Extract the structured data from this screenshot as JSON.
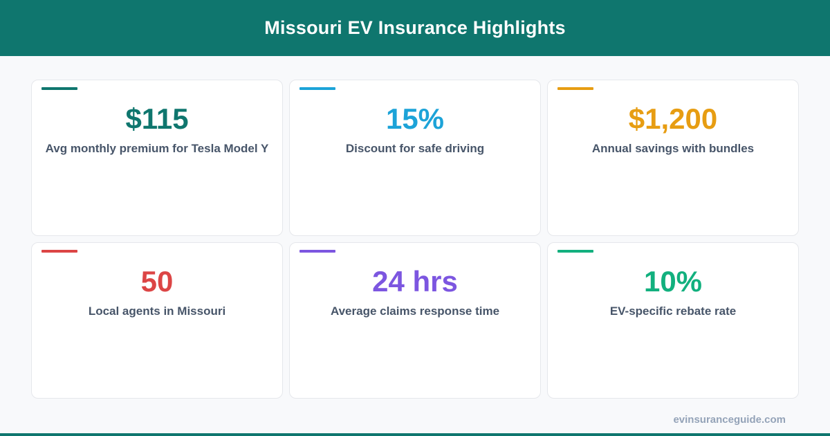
{
  "header": {
    "title": "Missouri EV Insurance Highlights"
  },
  "colors": {
    "brand": "#0f766e",
    "card1": "#0f766e",
    "card2": "#1ca3d8",
    "card3": "#e79d12",
    "card4": "#dc4545",
    "card5": "#7c56e0",
    "card6": "#12b07e"
  },
  "stats": [
    {
      "value": "$115",
      "label": "Avg monthly premium for Tesla Model Y"
    },
    {
      "value": "15%",
      "label": "Discount for safe driving"
    },
    {
      "value": "$1,200",
      "label": "Annual savings with bundles"
    },
    {
      "value": "50",
      "label": "Local agents in Missouri"
    },
    {
      "value": "24 hrs",
      "label": "Average claims response time"
    },
    {
      "value": "10%",
      "label": "EV-specific rebate rate"
    }
  ],
  "footer": {
    "site": "evinsuranceguide.com"
  }
}
